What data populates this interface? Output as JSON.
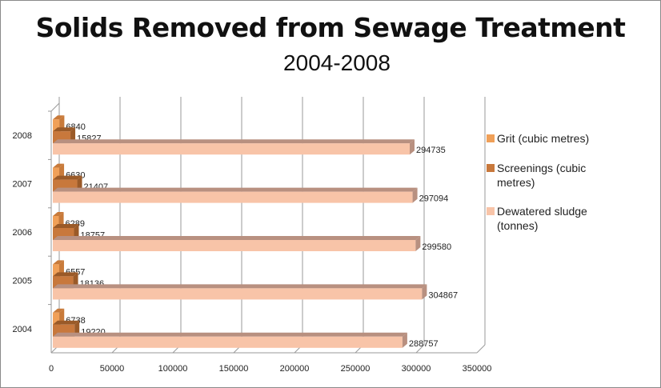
{
  "chart_data": {
    "type": "bar",
    "orientation": "horizontal",
    "title": "Solids Removed from Sewage Treatment",
    "subtitle": "2004-2008",
    "categories": [
      "2004",
      "2005",
      "2006",
      "2007",
      "2008"
    ],
    "series": [
      {
        "name": "Grit (cubic metres)",
        "color": "#f0a058",
        "values": [
          6738,
          6557,
          6289,
          6630,
          6840
        ]
      },
      {
        "name": "Screenings (cubic metres)",
        "color": "#c8783c",
        "values": [
          19220,
          18136,
          18757,
          21407,
          15827
        ]
      },
      {
        "name": "Dewatered sludge (tonnes)",
        "color": "#f8c4a8",
        "values": [
          288757,
          304867,
          299580,
          297094,
          294735
        ]
      }
    ],
    "xlim": [
      0,
      350000
    ],
    "xticks": [
      "0",
      "50000",
      "100000",
      "150000",
      "200000",
      "250000",
      "300000",
      "350000"
    ],
    "grid": true,
    "legend": "right"
  }
}
